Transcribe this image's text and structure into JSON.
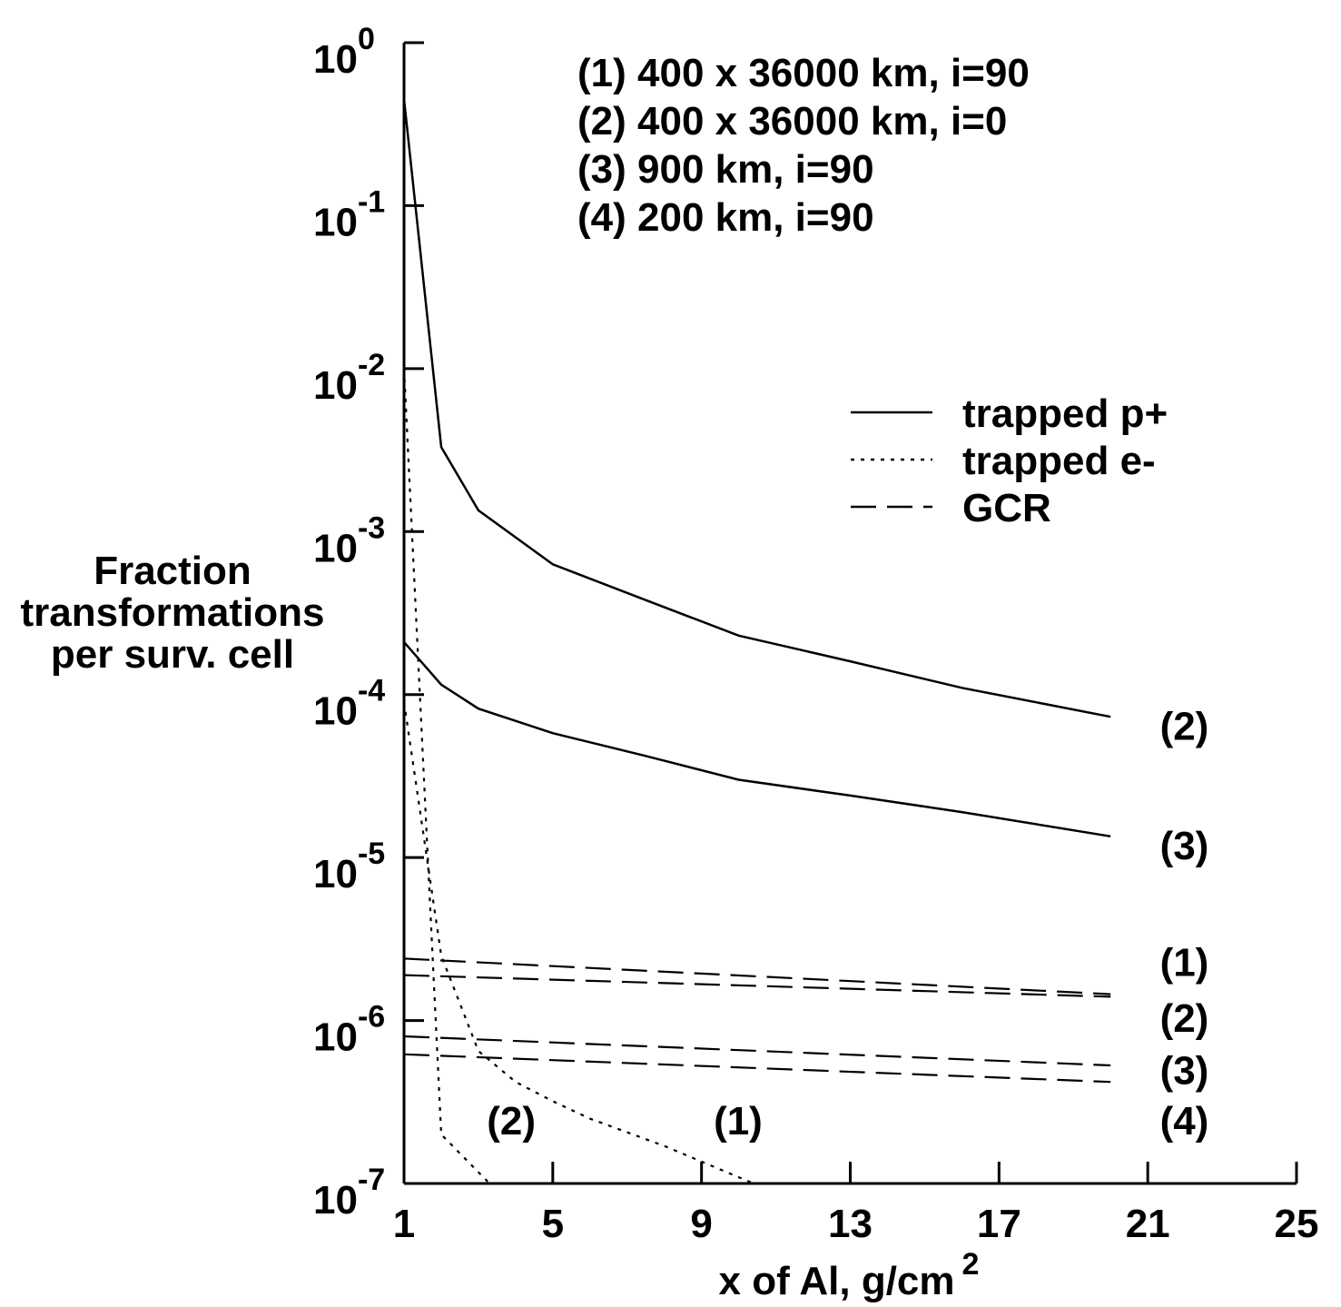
{
  "chart_data": {
    "type": "line",
    "ylabel": [
      "Fraction",
      "transformations",
      "per surv. cell"
    ],
    "xlabel": "x of Al, g/cm",
    "xlabel_sup": "2",
    "xlim": [
      1,
      25
    ],
    "ylim": [
      1e-07,
      1
    ],
    "yscale": "log",
    "xticks": [
      1,
      5,
      9,
      13,
      17,
      21,
      25
    ],
    "yticks": [
      {
        "value": 1.0,
        "base": "10",
        "exp": "0"
      },
      {
        "value": 0.1,
        "base": "10",
        "exp": "-1"
      },
      {
        "value": 0.01,
        "base": "10",
        "exp": "-2"
      },
      {
        "value": 0.001,
        "base": "10",
        "exp": "-3"
      },
      {
        "value": 0.0001,
        "base": "10",
        "exp": "-4"
      },
      {
        "value": 1e-05,
        "base": "10",
        "exp": "-5"
      },
      {
        "value": 1e-06,
        "base": "10",
        "exp": "-6"
      },
      {
        "value": 1e-07,
        "base": "10",
        "exp": "-7"
      }
    ],
    "orbits": [
      "(1) 400 x 36000 km, i=90",
      "(2) 400 x 36000 km, i=0",
      "(3) 900 km, i=90",
      "(4) 200 km, i=90"
    ],
    "legend": [
      {
        "label": "trapped p+",
        "style": "solid"
      },
      {
        "label": "trapped e-",
        "style": "dotted"
      },
      {
        "label": "GCR",
        "style": "dashed"
      }
    ],
    "series": [
      {
        "name": "trapped p+ (2)",
        "style": "solid",
        "label": "(2)",
        "x": [
          1,
          2,
          3,
          5,
          7.5,
          10,
          13,
          16,
          20
        ],
        "y": [
          0.45,
          0.0033,
          0.00135,
          0.00063,
          0.00038,
          0.00023,
          0.00016,
          0.00011,
          7.3e-05
        ]
      },
      {
        "name": "trapped p+ (3)",
        "style": "solid",
        "label": "(3)",
        "x": [
          1,
          2,
          3,
          5,
          7.5,
          10,
          13,
          16,
          20
        ],
        "y": [
          0.00021,
          0.000115,
          8.2e-05,
          5.8e-05,
          4.2e-05,
          3e-05,
          2.4e-05,
          1.9e-05,
          1.35e-05
        ]
      },
      {
        "name": "trapped e- (2)",
        "style": "dotted",
        "label": "(2)",
        "x": [
          1,
          2,
          3.3
        ],
        "y": [
          0.01,
          2e-07,
          1e-07
        ]
      },
      {
        "name": "trapped e- (1)",
        "style": "dotted",
        "label": "(1)",
        "x": [
          1,
          2,
          3,
          4,
          5,
          6,
          8,
          10.4
        ],
        "y": [
          9e-05,
          2.5e-06,
          6.5e-07,
          4.2e-07,
          3.2e-07,
          2.5e-07,
          1.7e-07,
          1e-07
        ]
      },
      {
        "name": "GCR (1)",
        "style": "dashed",
        "label": "(1)",
        "x": [
          1,
          20
        ],
        "y": [
          2.4e-06,
          1.45e-06
        ]
      },
      {
        "name": "GCR (2)",
        "style": "dashed",
        "label": "(2)",
        "x": [
          1,
          20
        ],
        "y": [
          1.9e-06,
          1.4e-06
        ]
      },
      {
        "name": "GCR (3)",
        "style": "dashed",
        "label": "(3)",
        "x": [
          1,
          20
        ],
        "y": [
          8e-07,
          5.3e-07
        ]
      },
      {
        "name": "GCR (4)",
        "style": "dashed",
        "label": "(4)",
        "x": [
          1,
          20
        ],
        "y": [
          6.2e-07,
          4.2e-07
        ]
      }
    ],
    "curve_labels": [
      {
        "text": "(2)",
        "x": 21.3,
        "y": 6.5e-05
      },
      {
        "text": "(3)",
        "x": 21.3,
        "y": 1.2e-05
      },
      {
        "text": "(1)",
        "x": 21.3,
        "y": 2.3e-06
      },
      {
        "text": "(2)",
        "x": 21.3,
        "y": 1.05e-06
      },
      {
        "text": "(3)",
        "x": 21.3,
        "y": 5e-07
      },
      {
        "text": "(4)",
        "x": 21.3,
        "y": 2.45e-07
      },
      {
        "text": "(2)",
        "x": 3.2,
        "y": 2.45e-07
      },
      {
        "text": "(1)",
        "x": 9.3,
        "y": 2.45e-07
      }
    ]
  }
}
